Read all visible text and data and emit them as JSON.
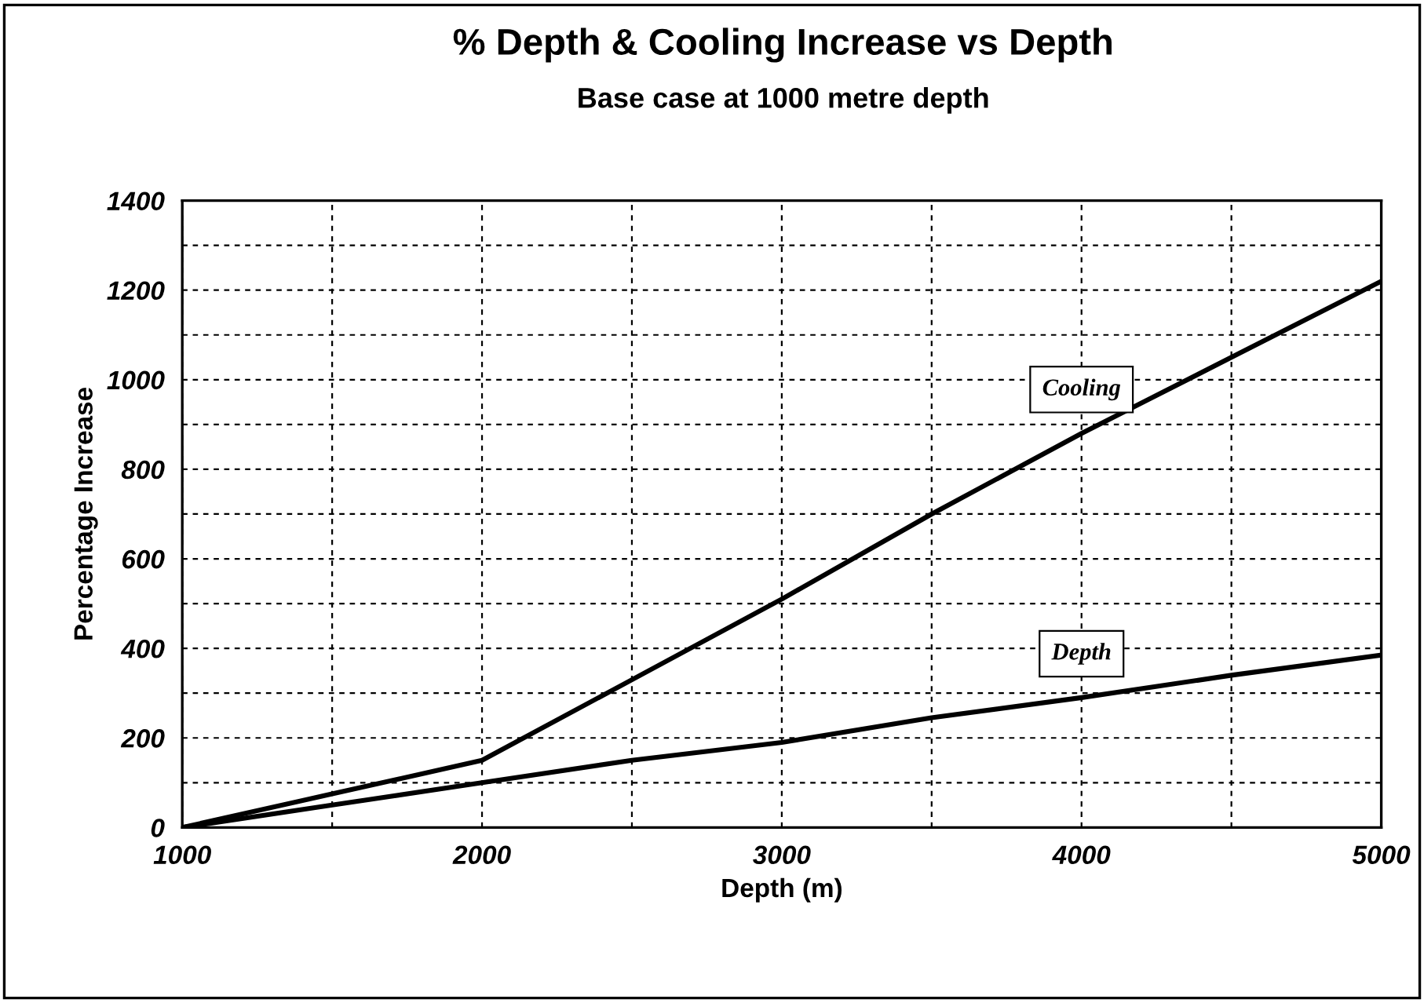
{
  "chart_data": {
    "type": "line",
    "title": "% Depth & Cooling Increase vs Depth",
    "subtitle": "Base case at 1000 metre depth",
    "xlabel": "Depth (m)",
    "ylabel": "Percentage Increase",
    "x": [
      1000,
      1500,
      2000,
      2500,
      3000,
      3500,
      4000,
      4500,
      5000
    ],
    "series": [
      {
        "name": "Cooling",
        "color": "#000000",
        "values": [
          0,
          75,
          150,
          330,
          510,
          700,
          880,
          1050,
          1220
        ]
      },
      {
        "name": "Depth",
        "color": "#000000",
        "values": [
          0,
          50,
          100,
          150,
          190,
          245,
          290,
          340,
          385
        ]
      }
    ],
    "xlim": [
      1000,
      5000
    ],
    "ylim": [
      0,
      1400
    ],
    "xticks": [
      1000,
      {
        "value": 1500,
        "label": null
      },
      2000,
      {
        "value": 2500,
        "label": null
      },
      3000,
      {
        "value": 3500,
        "label": null
      },
      4000,
      {
        "value": 4500,
        "label": null
      },
      5000
    ],
    "yticks": [
      0,
      {
        "value": 100,
        "label": null
      },
      200,
      {
        "value": 300,
        "label": null
      },
      400,
      {
        "value": 500,
        "label": null
      },
      600,
      {
        "value": 700,
        "label": null
      },
      800,
      {
        "value": 900,
        "label": null
      },
      1000,
      {
        "value": 1100,
        "label": null
      },
      1200,
      {
        "value": 1300,
        "label": null
      },
      1400
    ],
    "grid": true,
    "legend": false,
    "marker": "none",
    "line_style": "solid"
  }
}
